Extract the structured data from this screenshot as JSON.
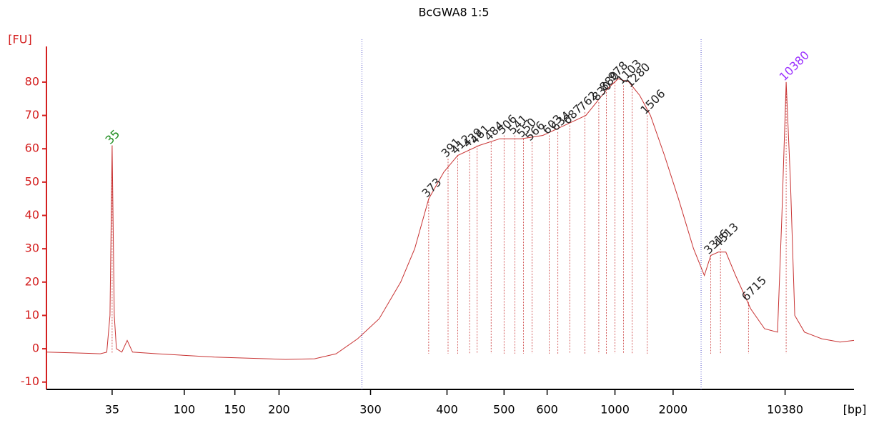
{
  "chart_data": {
    "type": "line",
    "title": "BcGWA8 1:5",
    "y_label": "[FU]",
    "x_label": "[bp]",
    "color": "#c83232",
    "axis_color": "#d42020",
    "xlim": [
      40,
      115
    ],
    "ylim": [
      -12.2,
      90.7
    ],
    "yticks": [
      -10,
      0,
      10,
      20,
      30,
      40,
      50,
      60,
      70,
      80
    ],
    "xticks": [
      {
        "value": 46.1,
        "label": "35"
      },
      {
        "value": 52.8,
        "label": "100"
      },
      {
        "value": 57.5,
        "label": "150"
      },
      {
        "value": 61.6,
        "label": "200"
      },
      {
        "value": 70.1,
        "label": "300"
      },
      {
        "value": 77.2,
        "label": "400"
      },
      {
        "value": 82.5,
        "label": "500"
      },
      {
        "value": 86.5,
        "label": "600"
      },
      {
        "value": 92.8,
        "label": "1000"
      },
      {
        "value": 98.2,
        "label": "2000"
      },
      {
        "value": 108.6,
        "label": "10380"
      }
    ],
    "markers": [
      69.3,
      100.8
    ],
    "x": [
      40.0,
      42.3,
      45.0,
      45.6,
      45.9,
      46.1,
      46.3,
      46.5,
      47.0,
      47.5,
      48.0,
      50.3,
      55.6,
      62.2,
      64.9,
      66.9,
      68.9,
      70.9,
      72.9,
      74.2,
      75.5,
      76.9,
      78.2,
      80.2,
      82.1,
      84.1,
      86.1,
      88.1,
      90.1,
      92.1,
      93.1,
      94.1,
      95.1,
      96.1,
      97.4,
      98.7,
      100.1,
      101.1,
      101.7,
      102.4,
      103.1,
      104.0,
      105.4,
      106.7,
      107.9,
      108.3,
      108.7,
      109.1,
      109.5,
      110.4,
      112.0,
      113.7,
      115.0
    ],
    "values": [
      -1,
      -1.2,
      -1.5,
      -1,
      10,
      61,
      10,
      0,
      -1,
      2.5,
      -1,
      -1.5,
      -2.5,
      -3.2,
      -3,
      -1.5,
      3,
      9,
      20,
      30,
      45,
      53,
      58,
      61,
      63,
      63,
      64,
      67,
      70,
      78,
      81,
      80,
      76,
      70,
      58,
      45,
      30,
      22,
      28,
      29,
      29,
      22,
      12,
      6,
      5,
      40,
      80,
      50,
      10,
      5,
      3,
      2,
      2.5
    ],
    "peaks": [
      {
        "label": "35",
        "x": 46.1,
        "y": 61,
        "color": "#1e8c1e"
      },
      {
        "label": "373",
        "x": 75.5,
        "y": 45,
        "color": "#222222"
      },
      {
        "label": "391",
        "x": 77.3,
        "y": 57,
        "color": "#222222"
      },
      {
        "label": "412",
        "x": 78.2,
        "y": 58,
        "color": "#222222"
      },
      {
        "label": "439",
        "x": 79.3,
        "y": 60,
        "color": "#222222"
      },
      {
        "label": "461",
        "x": 80.0,
        "y": 61,
        "color": "#222222"
      },
      {
        "label": "484",
        "x": 81.3,
        "y": 62,
        "color": "#222222"
      },
      {
        "label": "506",
        "x": 82.5,
        "y": 64,
        "color": "#222222"
      },
      {
        "label": "541",
        "x": 83.5,
        "y": 64,
        "color": "#222222"
      },
      {
        "label": "550",
        "x": 84.3,
        "y": 63,
        "color": "#222222"
      },
      {
        "label": "566",
        "x": 85.1,
        "y": 62,
        "color": "#222222"
      },
      {
        "label": "603",
        "x": 86.7,
        "y": 64,
        "color": "#222222"
      },
      {
        "label": "634",
        "x": 87.5,
        "y": 65,
        "color": "#222222"
      },
      {
        "label": "687",
        "x": 88.6,
        "y": 67,
        "color": "#222222"
      },
      {
        "label": "762",
        "x": 90.0,
        "y": 71,
        "color": "#222222"
      },
      {
        "label": "830",
        "x": 91.3,
        "y": 74,
        "color": "#222222"
      },
      {
        "label": "880",
        "x": 92.0,
        "y": 77,
        "color": "#222222"
      },
      {
        "label": "978",
        "x": 92.8,
        "y": 80,
        "color": "#222222"
      },
      {
        "label": "1103",
        "x": 93.6,
        "y": 79,
        "color": "#222222"
      },
      {
        "label": "1280",
        "x": 94.4,
        "y": 78,
        "color": "#222222"
      },
      {
        "label": "1506",
        "x": 95.8,
        "y": 70,
        "color": "#222222"
      },
      {
        "label": "3316",
        "x": 101.7,
        "y": 28,
        "color": "#222222"
      },
      {
        "label": "4513",
        "x": 102.6,
        "y": 30,
        "color": "#222222"
      },
      {
        "label": "6715",
        "x": 105.2,
        "y": 14,
        "color": "#222222"
      },
      {
        "label": "10380",
        "x": 108.7,
        "y": 80,
        "color": "#9b30ff"
      }
    ]
  }
}
